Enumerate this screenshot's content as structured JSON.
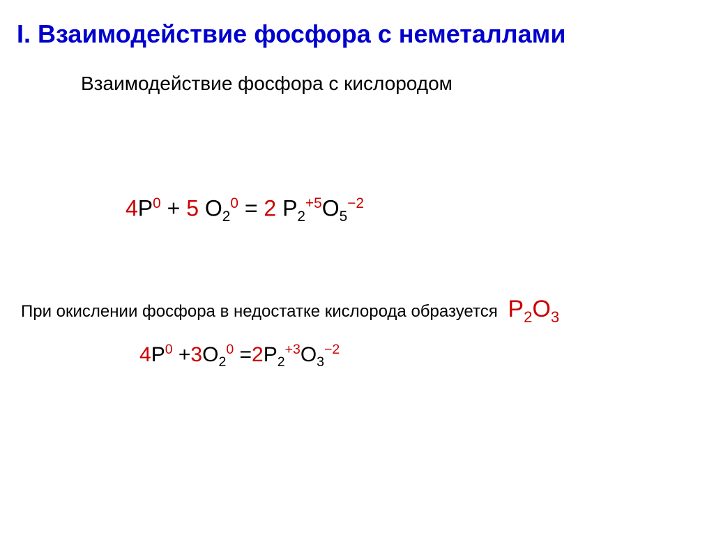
{
  "title": "I. Взаимодействие фосфора с неметаллами",
  "subtitle": "Взаимодействие фосфора с кислородом",
  "eq1": {
    "c1": "4",
    "e1": "P",
    "s1": "0",
    "plus": " + ",
    "c2": "5",
    "e2": " O",
    "sub2": "2",
    "s2": "0",
    "eq": " = ",
    "c3": "2",
    "e3a": " P",
    "sub3a": "2",
    "s3a": "+5",
    "e3b": "O",
    "sub3b": "5",
    "s3b": "−2"
  },
  "note_text": "При окислении фосфора в недостатке кислорода образуется ",
  "note_formula": {
    "p": "P",
    "sub1": "2",
    "o": "O",
    "sub2": "3"
  },
  "eq2": {
    "c1": "4",
    "e1": "P",
    "s1": "0",
    "plus": " +",
    "c2": "3",
    "e2": "O",
    "sub2": "2",
    "s2": "0",
    "eq": " =",
    "c3": "2",
    "e3a": "P",
    "sub3a": "2",
    "s3a": "+3",
    "e3b": "O",
    "sub3b": "3",
    "s3b": "−2"
  },
  "colors": {
    "title": "#0000cc",
    "text": "#000000",
    "red": "#cc0000",
    "background": "#ffffff"
  }
}
